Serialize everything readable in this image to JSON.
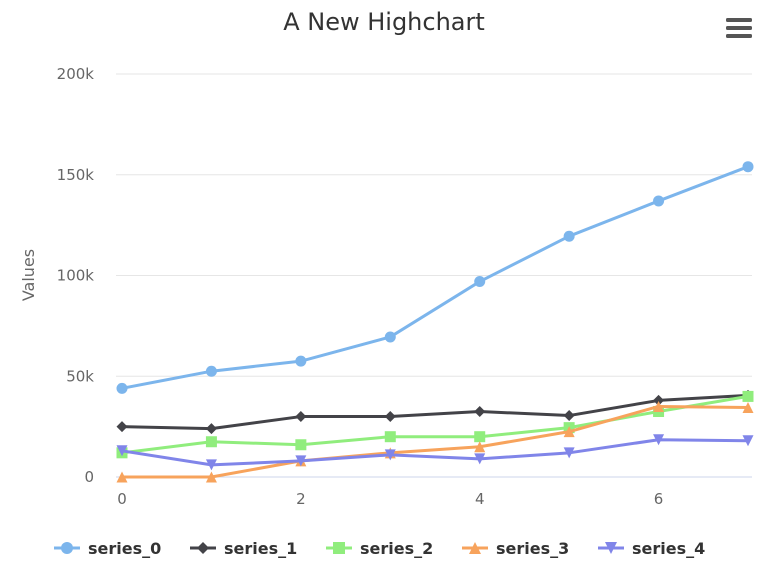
{
  "chart_data": {
    "type": "line",
    "title": "A New Highchart",
    "ylabel": "Values",
    "xlabel": "",
    "xlim": [
      0,
      7
    ],
    "ylim": [
      0,
      200000
    ],
    "x_ticks": [
      "0",
      "2",
      "4",
      "6"
    ],
    "y_ticks": [
      "0",
      "50k",
      "100k",
      "150k",
      "200k"
    ],
    "grid": "horizontal",
    "legend_placement": "bottom",
    "x": [
      0,
      1,
      2,
      3,
      4,
      5,
      6,
      7
    ],
    "series": [
      {
        "name": "series_0",
        "color": "#7cb5ec",
        "marker": "circle",
        "values": [
          44000,
          52500,
          57500,
          69500,
          97000,
          119500,
          137000,
          154000
        ]
      },
      {
        "name": "series_1",
        "color": "#434348",
        "marker": "diamond",
        "values": [
          25000,
          24000,
          30000,
          30000,
          32500,
          30500,
          38000,
          40500
        ]
      },
      {
        "name": "series_2",
        "color": "#90ed7d",
        "marker": "square",
        "values": [
          12000,
          17500,
          16000,
          20000,
          20000,
          24500,
          32500,
          40000
        ]
      },
      {
        "name": "series_3",
        "color": "#f7a35c",
        "marker": "triangle",
        "values": [
          0,
          0,
          8000,
          12000,
          15000,
          22500,
          35000,
          34500
        ]
      },
      {
        "name": "series_4",
        "color": "#8085e9",
        "marker": "triangle-down",
        "values": [
          13000,
          6000,
          8000,
          11000,
          9000,
          12000,
          18500,
          18000
        ]
      }
    ]
  },
  "menu": {
    "icon": "hamburger-menu-icon"
  }
}
